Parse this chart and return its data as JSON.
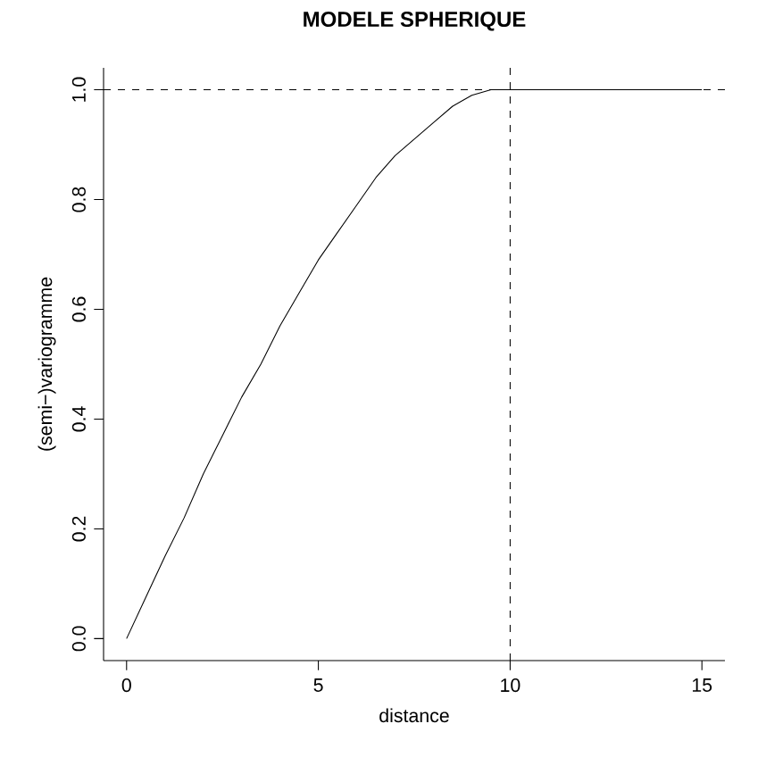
{
  "chart_data": {
    "type": "line",
    "title": "MODELE SPHERIQUE",
    "xlabel": "distance",
    "ylabel": "(semi−)variogramme",
    "x": [
      0,
      0.5,
      1,
      1.5,
      2,
      2.5,
      3,
      3.5,
      4,
      4.5,
      5,
      5.5,
      6,
      6.5,
      7,
      7.5,
      8,
      8.5,
      9,
      9.5,
      10,
      11,
      12,
      13,
      14,
      15
    ],
    "series": [
      {
        "color": "#000000",
        "values": [
          0,
          0.075,
          0.15,
          0.22,
          0.3,
          0.37,
          0.44,
          0.5,
          0.57,
          0.63,
          0.69,
          0.74,
          0.79,
          0.84,
          0.88,
          0.91,
          0.94,
          0.97,
          0.99,
          1.0,
          1,
          1,
          1,
          1,
          1,
          1
        ]
      }
    ],
    "xlim": [
      -0.6,
      15.6
    ],
    "ylim": [
      -0.04,
      1.04
    ],
    "xticks": [
      0,
      5,
      10,
      15
    ],
    "yticks": [
      {
        "value": 0,
        "label": "0.0"
      },
      {
        "value": 0.2,
        "label": "0.2"
      },
      {
        "value": 0.4,
        "label": "0.4"
      },
      {
        "value": 0.6,
        "label": "0.6"
      },
      {
        "value": 0.8,
        "label": "0.8"
      },
      {
        "value": 1,
        "label": "1.0"
      }
    ],
    "ref_lines": [
      {
        "axis": "y",
        "value": 1,
        "line_style": "dashed"
      },
      {
        "axis": "x",
        "value": 10,
        "line_style": "dashed"
      }
    ],
    "line_style": "solid"
  }
}
